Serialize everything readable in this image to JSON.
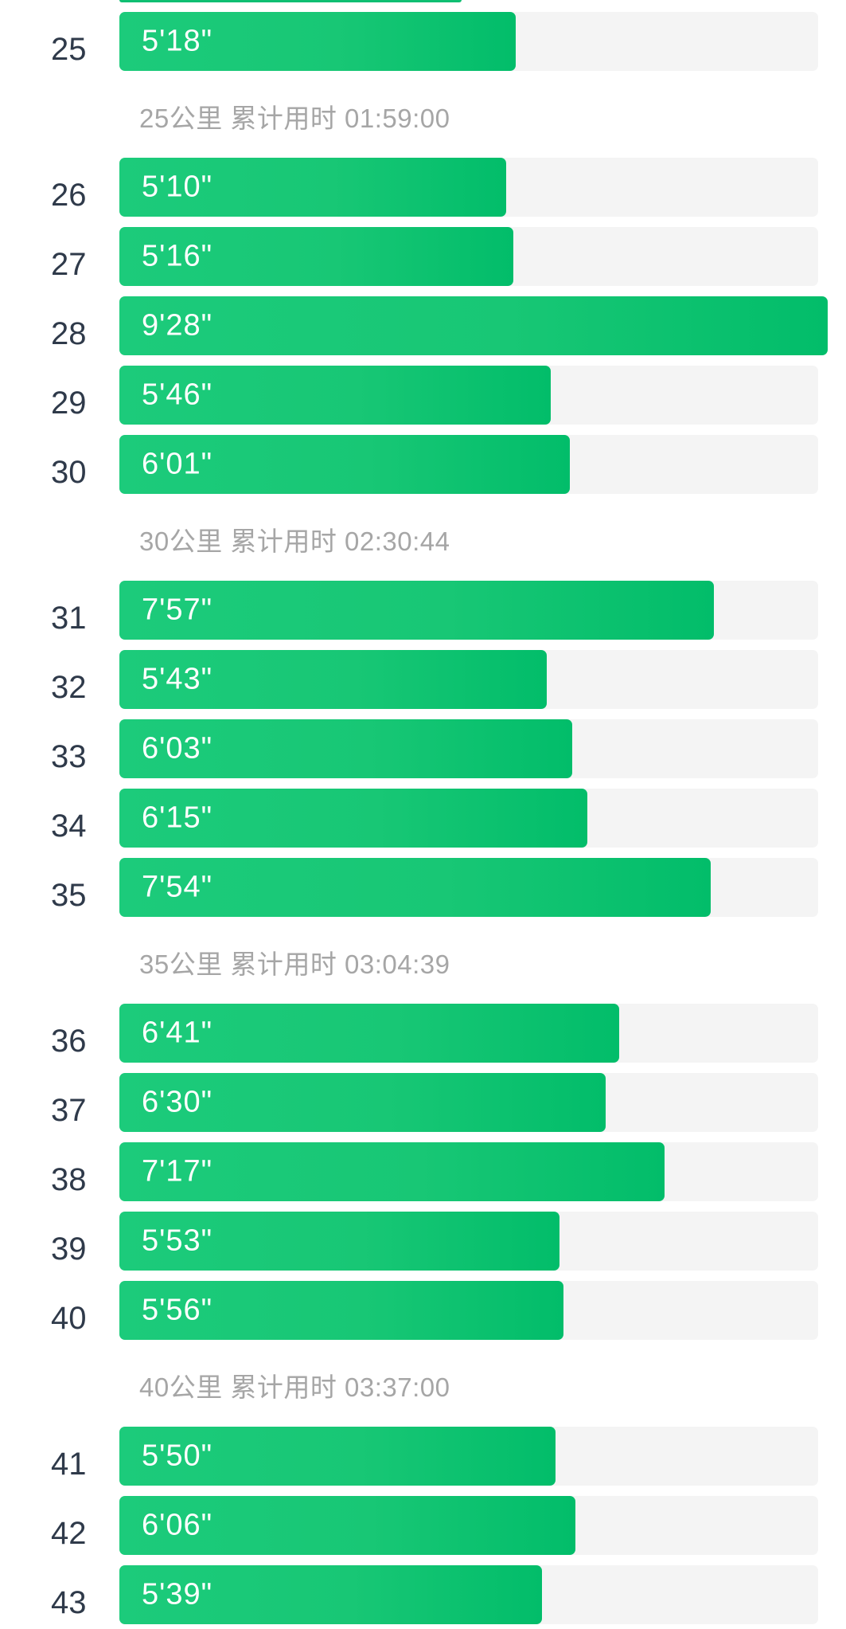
{
  "theme": {
    "bar_color": "#19c776",
    "track_color": "#f4f4f4",
    "label_color": "#2f3a4a",
    "summary_color": "#a6a6a6"
  },
  "scale_max_pace_seconds": 568,
  "splits": [
    {
      "km": "25",
      "pace": "5'18\"",
      "seconds": 318
    },
    {
      "km": "26",
      "pace": "5'10\"",
      "seconds": 310
    },
    {
      "km": "27",
      "pace": "5'16\"",
      "seconds": 316
    },
    {
      "km": "28",
      "pace": "9'28\"",
      "seconds": 568
    },
    {
      "km": "29",
      "pace": "5'46\"",
      "seconds": 346
    },
    {
      "km": "30",
      "pace": "6'01\"",
      "seconds": 361
    },
    {
      "km": "31",
      "pace": "7'57\"",
      "seconds": 477
    },
    {
      "km": "32",
      "pace": "5'43\"",
      "seconds": 343
    },
    {
      "km": "33",
      "pace": "6'03\"",
      "seconds": 363
    },
    {
      "km": "34",
      "pace": "6'15\"",
      "seconds": 375
    },
    {
      "km": "35",
      "pace": "7'54\"",
      "seconds": 474
    },
    {
      "km": "36",
      "pace": "6'41\"",
      "seconds": 401
    },
    {
      "km": "37",
      "pace": "6'30\"",
      "seconds": 390
    },
    {
      "km": "38",
      "pace": "7'17\"",
      "seconds": 437
    },
    {
      "km": "39",
      "pace": "5'53\"",
      "seconds": 353
    },
    {
      "km": "40",
      "pace": "5'56\"",
      "seconds": 356
    },
    {
      "km": "41",
      "pace": "5'50\"",
      "seconds": 350
    },
    {
      "km": "42",
      "pace": "6'06\"",
      "seconds": 366
    },
    {
      "km": "43",
      "pace": "5'39\"",
      "seconds": 339
    }
  ],
  "summaries": [
    {
      "after_km": "25",
      "text": "25公里 累计用时 01:59:00"
    },
    {
      "after_km": "30",
      "text": "30公里 累计用时 02:30:44"
    },
    {
      "after_km": "35",
      "text": "35公里 累计用时 03:04:39"
    },
    {
      "after_km": "40",
      "text": "40公里 累计用时 03:37:00"
    }
  ]
}
